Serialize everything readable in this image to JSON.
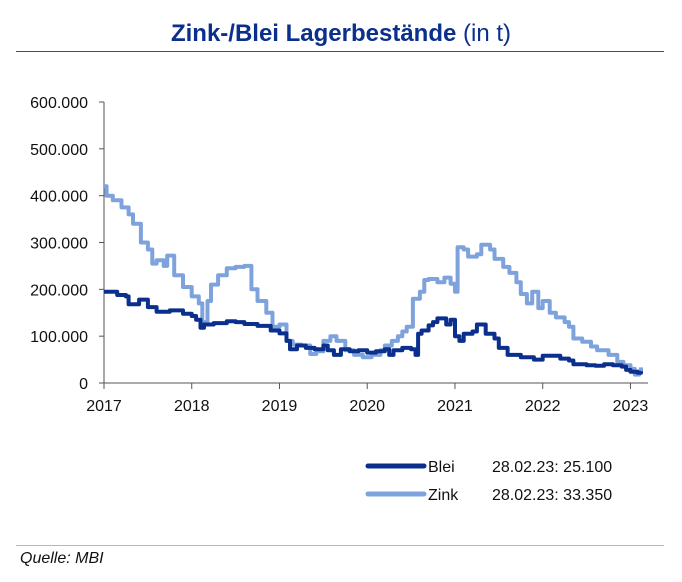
{
  "title": {
    "main": "Zink-/Blei Lagerbestände",
    "suffix": "(in t)"
  },
  "source": "Quelle: MBI",
  "chart_data": {
    "type": "line",
    "title": "Zink-/Blei Lagerbestände (in t)",
    "ylim": [
      0,
      600000
    ],
    "xlim": [
      2017.0,
      2023.2
    ],
    "y_ticks": [
      "600.000",
      "500.000",
      "400.000",
      "300.000",
      "200.000",
      "100.000",
      "0"
    ],
    "y_tick_values": [
      600000,
      500000,
      400000,
      300000,
      200000,
      100000,
      0
    ],
    "x_ticks": [
      "2017",
      "2018",
      "2019",
      "2020",
      "2021",
      "2022",
      "2023"
    ],
    "x_tick_values": [
      2017,
      2018,
      2019,
      2020,
      2021,
      2022,
      2023
    ],
    "grid": false,
    "legend_position": "bottom-right",
    "series": [
      {
        "name": "Blei",
        "color": "#0a2f8c",
        "legend_note": "28.02.23: 25.100",
        "points": [
          [
            2017.0,
            195000
          ],
          [
            2017.15,
            188000
          ],
          [
            2017.25,
            185000
          ],
          [
            2017.28,
            168000
          ],
          [
            2017.4,
            178000
          ],
          [
            2017.5,
            162000
          ],
          [
            2017.6,
            152000
          ],
          [
            2017.75,
            155000
          ],
          [
            2017.9,
            148000
          ],
          [
            2018.0,
            143000
          ],
          [
            2018.05,
            135000
          ],
          [
            2018.1,
            118000
          ],
          [
            2018.14,
            125000
          ],
          [
            2018.25,
            128000
          ],
          [
            2018.4,
            132000
          ],
          [
            2018.5,
            130000
          ],
          [
            2018.6,
            126000
          ],
          [
            2018.75,
            122000
          ],
          [
            2018.9,
            112000
          ],
          [
            2019.0,
            106000
          ],
          [
            2019.08,
            90000
          ],
          [
            2019.12,
            72000
          ],
          [
            2019.2,
            80000
          ],
          [
            2019.3,
            75000
          ],
          [
            2019.4,
            72000
          ],
          [
            2019.5,
            80000
          ],
          [
            2019.55,
            70000
          ],
          [
            2019.62,
            60000
          ],
          [
            2019.7,
            72000
          ],
          [
            2019.8,
            68000
          ],
          [
            2019.9,
            70000
          ],
          [
            2020.0,
            65000
          ],
          [
            2020.1,
            68000
          ],
          [
            2020.2,
            72000
          ],
          [
            2020.25,
            60000
          ],
          [
            2020.3,
            70000
          ],
          [
            2020.4,
            75000
          ],
          [
            2020.5,
            72000
          ],
          [
            2020.55,
            60000
          ],
          [
            2020.58,
            105000
          ],
          [
            2020.62,
            112000
          ],
          [
            2020.7,
            123000
          ],
          [
            2020.75,
            130000
          ],
          [
            2020.8,
            138000
          ],
          [
            2020.9,
            125000
          ],
          [
            2020.95,
            135000
          ],
          [
            2021.0,
            100000
          ],
          [
            2021.05,
            90000
          ],
          [
            2021.1,
            105000
          ],
          [
            2021.2,
            110000
          ],
          [
            2021.25,
            125000
          ],
          [
            2021.35,
            105000
          ],
          [
            2021.45,
            95000
          ],
          [
            2021.5,
            75000
          ],
          [
            2021.6,
            60000
          ],
          [
            2021.75,
            55000
          ],
          [
            2021.9,
            50000
          ],
          [
            2022.0,
            58000
          ],
          [
            2022.2,
            52000
          ],
          [
            2022.3,
            48000
          ],
          [
            2022.35,
            40000
          ],
          [
            2022.5,
            38000
          ],
          [
            2022.6,
            37000
          ],
          [
            2022.7,
            40000
          ],
          [
            2022.8,
            38000
          ],
          [
            2022.9,
            35000
          ],
          [
            2022.95,
            28000
          ],
          [
            2023.0,
            24000
          ],
          [
            2023.08,
            22000
          ],
          [
            2023.12,
            25100
          ]
        ]
      },
      {
        "name": "Zink",
        "color": "#7ea3dc",
        "legend_note": "28.02.23: 33.350",
        "points": [
          [
            2017.0,
            420000
          ],
          [
            2017.03,
            400000
          ],
          [
            2017.1,
            390000
          ],
          [
            2017.2,
            375000
          ],
          [
            2017.28,
            360000
          ],
          [
            2017.33,
            340000
          ],
          [
            2017.42,
            300000
          ],
          [
            2017.5,
            285000
          ],
          [
            2017.55,
            255000
          ],
          [
            2017.6,
            262000
          ],
          [
            2017.68,
            250000
          ],
          [
            2017.72,
            272000
          ],
          [
            2017.8,
            230000
          ],
          [
            2017.9,
            205000
          ],
          [
            2018.0,
            185000
          ],
          [
            2018.08,
            170000
          ],
          [
            2018.12,
            130000
          ],
          [
            2018.18,
            175000
          ],
          [
            2018.22,
            210000
          ],
          [
            2018.3,
            230000
          ],
          [
            2018.4,
            245000
          ],
          [
            2018.5,
            248000
          ],
          [
            2018.6,
            250000
          ],
          [
            2018.68,
            200000
          ],
          [
            2018.75,
            175000
          ],
          [
            2018.85,
            150000
          ],
          [
            2018.92,
            120000
          ],
          [
            2019.0,
            125000
          ],
          [
            2019.08,
            90000
          ],
          [
            2019.15,
            82000
          ],
          [
            2019.25,
            80000
          ],
          [
            2019.35,
            62000
          ],
          [
            2019.42,
            68000
          ],
          [
            2019.5,
            90000
          ],
          [
            2019.58,
            100000
          ],
          [
            2019.65,
            90000
          ],
          [
            2019.75,
            70000
          ],
          [
            2019.85,
            60000
          ],
          [
            2019.95,
            55000
          ],
          [
            2020.05,
            60000
          ],
          [
            2020.15,
            70000
          ],
          [
            2020.2,
            80000
          ],
          [
            2020.28,
            90000
          ],
          [
            2020.35,
            100000
          ],
          [
            2020.4,
            110000
          ],
          [
            2020.45,
            120000
          ],
          [
            2020.52,
            180000
          ],
          [
            2020.6,
            195000
          ],
          [
            2020.65,
            220000
          ],
          [
            2020.7,
            222000
          ],
          [
            2020.8,
            215000
          ],
          [
            2020.88,
            225000
          ],
          [
            2020.95,
            212000
          ],
          [
            2021.0,
            195000
          ],
          [
            2021.03,
            290000
          ],
          [
            2021.1,
            285000
          ],
          [
            2021.15,
            270000
          ],
          [
            2021.25,
            275000
          ],
          [
            2021.3,
            295000
          ],
          [
            2021.4,
            285000
          ],
          [
            2021.45,
            265000
          ],
          [
            2021.55,
            248000
          ],
          [
            2021.62,
            235000
          ],
          [
            2021.7,
            215000
          ],
          [
            2021.75,
            190000
          ],
          [
            2021.82,
            170000
          ],
          [
            2021.88,
            195000
          ],
          [
            2021.95,
            160000
          ],
          [
            2022.0,
            175000
          ],
          [
            2022.08,
            150000
          ],
          [
            2022.15,
            140000
          ],
          [
            2022.25,
            130000
          ],
          [
            2022.3,
            120000
          ],
          [
            2022.35,
            95000
          ],
          [
            2022.45,
            88000
          ],
          [
            2022.55,
            78000
          ],
          [
            2022.62,
            70000
          ],
          [
            2022.75,
            60000
          ],
          [
            2022.85,
            45000
          ],
          [
            2022.92,
            38000
          ],
          [
            2023.0,
            30000
          ],
          [
            2023.05,
            18000
          ],
          [
            2023.1,
            25000
          ],
          [
            2023.12,
            33350
          ]
        ]
      }
    ]
  }
}
